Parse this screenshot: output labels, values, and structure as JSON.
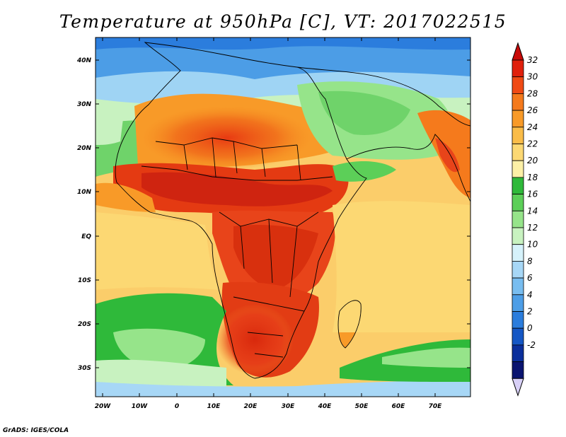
{
  "title": "Temperature at 950hPa [C], VT: 2017022515",
  "credit": "GrADS: IGES/COLA",
  "map": {
    "lat_labels": [
      "40N",
      "30N",
      "20N",
      "10N",
      "EQ",
      "10S",
      "20S",
      "30S"
    ],
    "lon_labels": [
      "20W",
      "10W",
      "0",
      "10E",
      "20E",
      "30E",
      "40E",
      "50E",
      "60E",
      "70E"
    ]
  },
  "colorbar": {
    "labels": [
      "32",
      "30",
      "28",
      "26",
      "24",
      "22",
      "20",
      "18",
      "16",
      "14",
      "12",
      "10",
      "8",
      "6",
      "4",
      "2",
      "0",
      "-2"
    ],
    "colors": [
      "#e0200c",
      "#f04a14",
      "#f57a1c",
      "#f89a28",
      "#fabc48",
      "#fcd873",
      "#fcf0a6",
      "#2fb93a",
      "#5ccf58",
      "#96e48a",
      "#c8f2c0",
      "#d6f2fb",
      "#a7d7f6",
      "#78bdf0",
      "#4d9ee7",
      "#2b7ddd",
      "#1557c5",
      "#0b2f9c",
      "#0a1470"
    ],
    "top_color": "#c80a08",
    "bottom_color": "#d8d0f7"
  }
}
